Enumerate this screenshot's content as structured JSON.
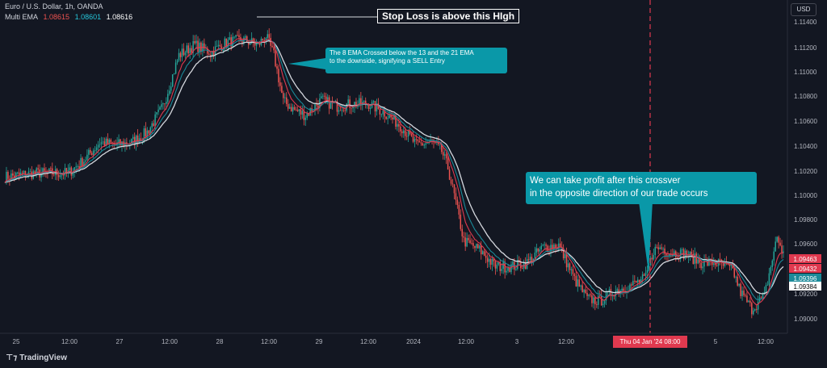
{
  "header": {
    "symbol": "Euro / U.S. Dollar, 1h, OANDA",
    "indicator": "Multi EMA",
    "ema_values": [
      "1.08615",
      "1.08601",
      "1.08616"
    ]
  },
  "currency_button": "USD",
  "logo_text": "TradingView",
  "colors": {
    "background": "#131722",
    "up": "#26a69a",
    "down": "#ef5350",
    "ema8": "#e0394f",
    "ema13": "#1b8a99",
    "ema21": "#d5d8de",
    "annotation": "#0a98a8"
  },
  "annotations": {
    "stop_loss": "Stop Loss is above this HIgh",
    "sell_entry": "The 8 EMA Crossed below the 13 and the 21 EMA\nto the downside, signifying a SELL Entry",
    "take_profit": "We can take profit after this crossver\nin the opposite direction of our trade occurs"
  },
  "crosshair_date": "Thu 04 Jan '24   08:00",
  "price_labels": [
    "1.09463",
    "1.09432",
    "1.09396",
    "1.09384"
  ],
  "chart_data": {
    "type": "candlestick",
    "y_ticks": [
      "1.11400",
      "1.11200",
      "1.11000",
      "1.10800",
      "1.10600",
      "1.10400",
      "1.10200",
      "1.10000",
      "1.09800",
      "1.09600",
      "1.09200",
      "1.09000"
    ],
    "x_ticks": [
      "25",
      "12:00",
      "27",
      "12:00",
      "28",
      "12:00",
      "29",
      "12:00",
      "2024",
      "12:00",
      "3",
      "12:00",
      "12:00",
      "5",
      "12:00"
    ],
    "ylim": [
      1.0893,
      1.1153
    ],
    "series": [
      {
        "name": "EMA 8",
        "key": "ema8"
      },
      {
        "name": "EMA 13",
        "key": "ema13"
      },
      {
        "name": "EMA 21",
        "key": "ema21"
      }
    ],
    "price_anchors": [
      [
        0,
        1.1015
      ],
      [
        20,
        1.1018
      ],
      [
        40,
        1.1018
      ],
      [
        50,
        1.1028
      ],
      [
        60,
        1.1042
      ],
      [
        70,
        1.104
      ],
      [
        80,
        1.1042
      ],
      [
        90,
        1.105
      ],
      [
        100,
        1.107
      ],
      [
        110,
        1.111
      ],
      [
        120,
        1.1118
      ],
      [
        130,
        1.1112
      ],
      [
        140,
        1.112
      ],
      [
        150,
        1.1122
      ],
      [
        160,
        1.1118
      ],
      [
        165,
        1.1125
      ],
      [
        170,
        1.111
      ],
      [
        176,
        1.1074
      ],
      [
        182,
        1.1068
      ],
      [
        190,
        1.1063
      ],
      [
        200,
        1.1075
      ],
      [
        210,
        1.107
      ],
      [
        220,
        1.1072
      ],
      [
        230,
        1.1072
      ],
      [
        240,
        1.1065
      ],
      [
        250,
        1.1055
      ],
      [
        260,
        1.104
      ],
      [
        270,
        1.1042
      ],
      [
        276,
        1.1035
      ],
      [
        280,
        1.1022
      ],
      [
        285,
        1.0995
      ],
      [
        290,
        1.0965
      ],
      [
        300,
        1.0958
      ],
      [
        310,
        1.0945
      ],
      [
        320,
        1.0945
      ],
      [
        330,
        1.0948
      ],
      [
        340,
        1.096
      ],
      [
        350,
        1.0962
      ],
      [
        360,
        1.0935
      ],
      [
        368,
        1.092
      ],
      [
        376,
        1.0918
      ],
      [
        385,
        1.0926
      ],
      [
        395,
        1.093
      ],
      [
        405,
        1.0936
      ],
      [
        410,
        1.0958
      ],
      [
        415,
        1.096
      ],
      [
        420,
        1.0956
      ],
      [
        430,
        1.0955
      ],
      [
        440,
        1.0948
      ],
      [
        450,
        1.0948
      ],
      [
        460,
        1.0942
      ],
      [
        465,
        1.0925
      ],
      [
        472,
        1.0912
      ],
      [
        480,
        1.0922
      ],
      [
        484,
        1.0945
      ],
      [
        488,
        1.0968
      ],
      [
        492,
        1.0955
      ]
    ]
  }
}
